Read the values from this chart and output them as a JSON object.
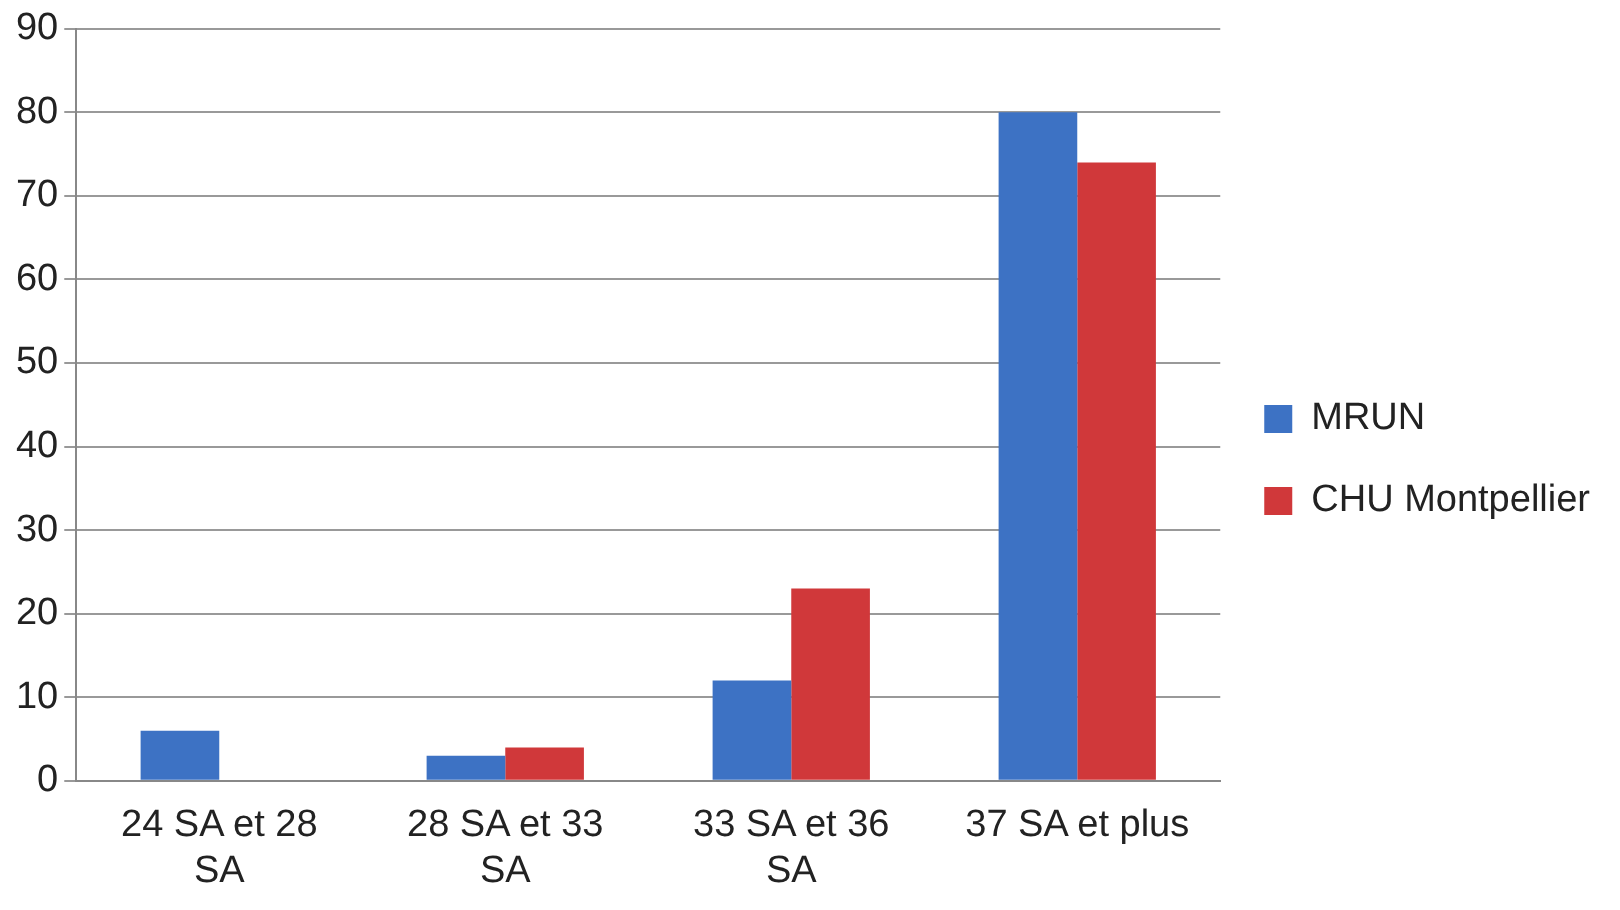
{
  "chart_data": {
    "type": "bar",
    "categories": [
      "24 SA et 28 SA",
      "28 SA et 33 SA",
      "33 SA et 36 SA",
      "37 SA et plus"
    ],
    "series": [
      {
        "name": "MRUN",
        "color": "#3d72c4",
        "values": [
          6,
          3,
          12,
          80
        ]
      },
      {
        "name": "CHU Montpellier",
        "color": "#d0383a",
        "values": [
          null,
          4,
          23,
          74
        ]
      }
    ],
    "ylim": [
      0,
      90
    ],
    "yticks": [
      0,
      10,
      20,
      30,
      40,
      50,
      60,
      70,
      80,
      90
    ],
    "grid": "y",
    "legend": "right"
  }
}
